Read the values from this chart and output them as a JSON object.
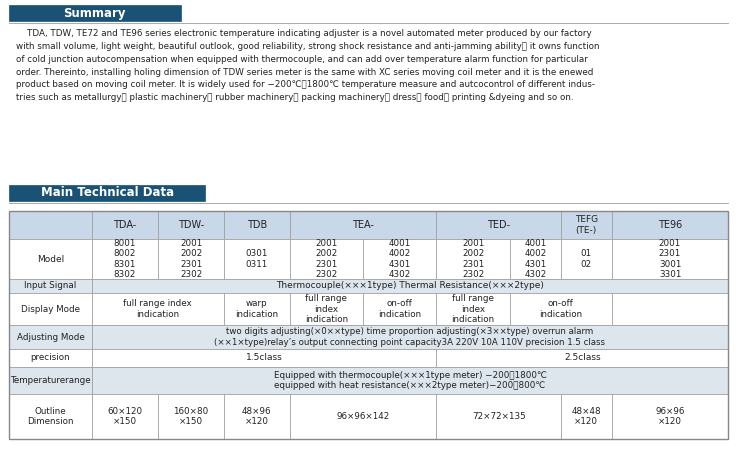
{
  "summary_title": "Summary",
  "section2_title": "Main Technical Data",
  "header_bg": "#1a5276",
  "header_text_color": "#ffffff",
  "table_header_bg": "#c8d8e8",
  "row_bg_odd": "#dde5ed",
  "row_bg_even": "#ffffff",
  "border_color": "#999999",
  "text_color": "#222222",
  "bg_color": "#ffffff",
  "summary_lines": [
    "    TDA, TDW, TE72 and TE96 series electronic temperature indicating adjuster is a novel automated meter produced by our factory",
    "with small volume, light weight, beautiful outlook, good reliability, strong shock resistance and anti-jamming ability， it owns function",
    "of cold junction autocompensation when equipped with thermocouple, and can add over temperature alarm function for particular",
    "order. Thereinto, installing holing dimension of TDW series meter is the same with XC series moving coil meter and it is the enewed",
    "product based on moving coil meter. It is widely used for −200℃－1800℃ temperature measure and autcocontrol of different indus-",
    "tries such as metallurgy， plastic machinery， rubber machinery， packing machinery， dress， food， printing &dyeing and so on."
  ]
}
